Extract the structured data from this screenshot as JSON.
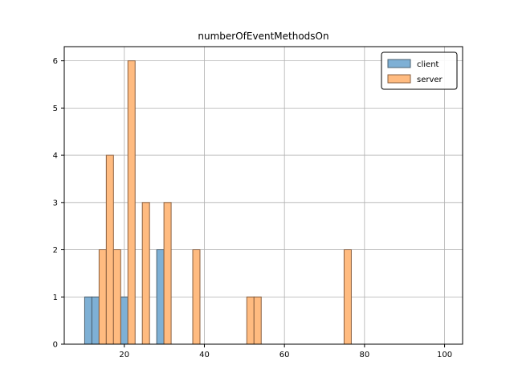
{
  "chart_data": {
    "type": "bar",
    "title": "numberOfEventMethodsOn",
    "xlabel": "",
    "ylabel": "",
    "xlim": [
      5,
      104.5
    ],
    "ylim": [
      0,
      6.3
    ],
    "xticks": [
      20,
      40,
      60,
      80,
      100
    ],
    "yticks": [
      0,
      1,
      2,
      3,
      4,
      5,
      6
    ],
    "grid": true,
    "legend_position": "top-right",
    "bin_width": 1.8,
    "series": [
      {
        "name": "client",
        "color": "#7eb0d5",
        "edge": "#4a6070",
        "bins": [
          {
            "x": 10.1,
            "value": 1
          },
          {
            "x": 11.9,
            "value": 1
          },
          {
            "x": 19.1,
            "value": 1
          },
          {
            "x": 28.1,
            "value": 2
          }
        ]
      },
      {
        "name": "server",
        "color": "#ffbb80",
        "edge": "#8a6040",
        "bins": [
          {
            "x": 13.7,
            "value": 2
          },
          {
            "x": 15.5,
            "value": 4
          },
          {
            "x": 17.3,
            "value": 2
          },
          {
            "x": 20.9,
            "value": 6
          },
          {
            "x": 24.5,
            "value": 3
          },
          {
            "x": 29.9,
            "value": 3
          },
          {
            "x": 37.1,
            "value": 2
          },
          {
            "x": 50.6,
            "value": 1
          },
          {
            "x": 52.4,
            "value": 1
          },
          {
            "x": 74.9,
            "value": 2
          }
        ]
      }
    ]
  }
}
